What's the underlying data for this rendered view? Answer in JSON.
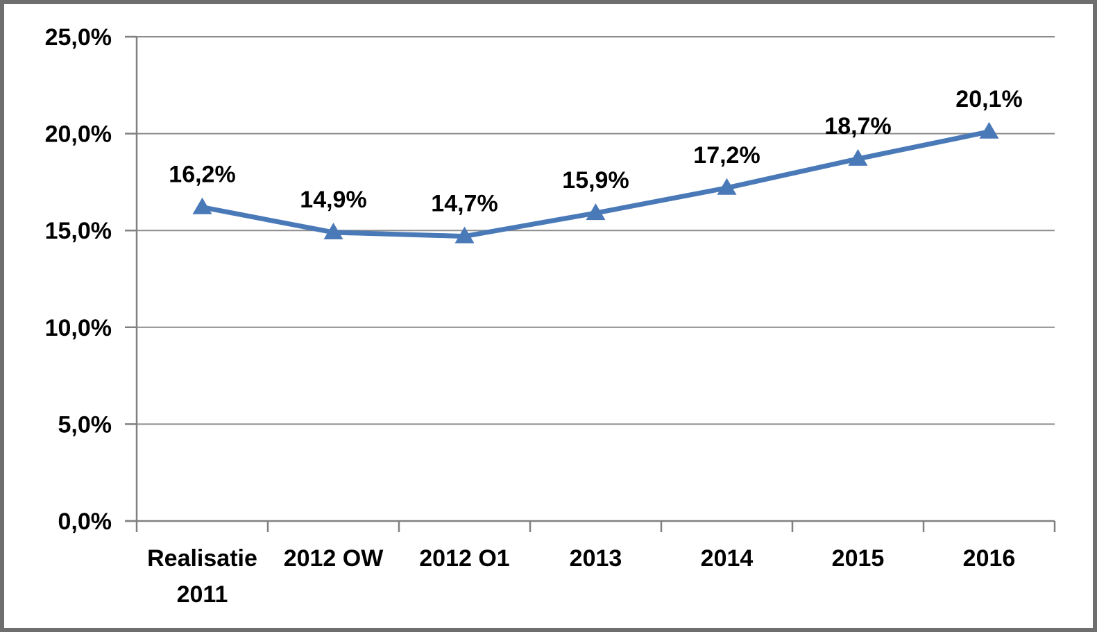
{
  "chart_data": {
    "type": "line",
    "title": "",
    "xlabel": "",
    "ylabel": "",
    "categories": [
      "Realisatie 2011",
      "2012 OW",
      "2012 O1",
      "2013",
      "2014",
      "2015",
      "2016"
    ],
    "category_lines": [
      [
        "Realisatie",
        "2011"
      ],
      [
        "2012 OW"
      ],
      [
        "2012 O1"
      ],
      [
        "2013"
      ],
      [
        "2014"
      ],
      [
        "2015"
      ],
      [
        "2016"
      ]
    ],
    "series": [
      {
        "name": "percentage",
        "values": [
          16.2,
          14.9,
          14.7,
          15.9,
          17.2,
          18.7,
          20.1
        ],
        "point_labels": [
          "16,2%",
          "14,9%",
          "14,7%",
          "15,9%",
          "17,2%",
          "18,7%",
          "20,1%"
        ]
      }
    ],
    "ylim": [
      0,
      25
    ],
    "ytick_step": 5,
    "ytick_labels": [
      "0,0%",
      "5,0%",
      "10,0%",
      "15,0%",
      "20,0%",
      "25,0%"
    ],
    "grid": true,
    "legend_position": "none",
    "marker": "triangle",
    "colors": {
      "line": "#4A79B8",
      "marker": "#4A79B8",
      "gridline": "#8C8C8C",
      "axis": "#808080",
      "text": "#000000",
      "frame_border": "#6E6E6E",
      "background": "#FFFFFF"
    }
  }
}
